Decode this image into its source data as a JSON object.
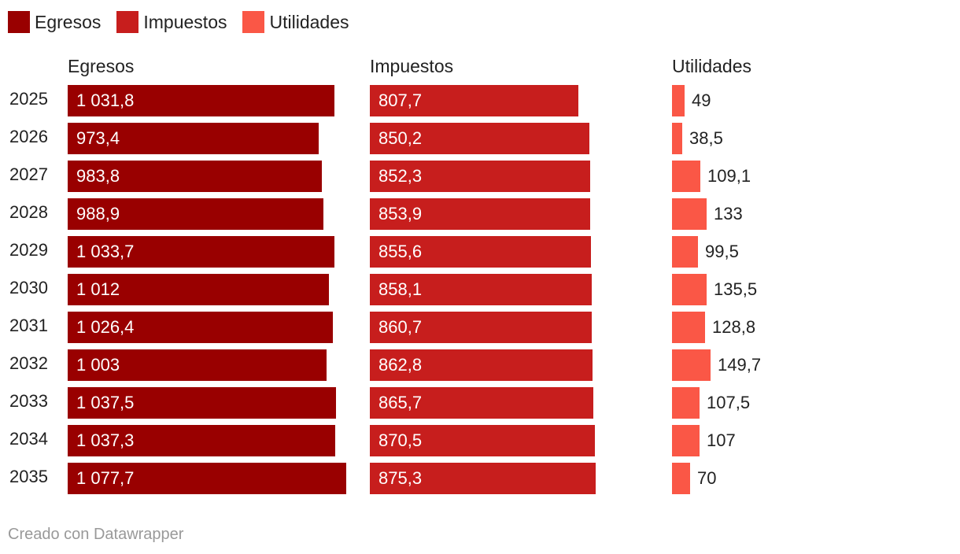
{
  "chart_data": {
    "type": "bar",
    "orientation": "horizontal",
    "layout": "small-multiples",
    "categories": [
      "2025",
      "2026",
      "2027",
      "2028",
      "2029",
      "2030",
      "2031",
      "2032",
      "2033",
      "2034",
      "2035"
    ],
    "series": [
      {
        "name": "Egresos",
        "color": "#990000",
        "values": [
          1031.8,
          973.4,
          983.8,
          988.9,
          1033.7,
          1012,
          1026.4,
          1003,
          1037.5,
          1037.3,
          1077.7
        ],
        "labels": [
          "1 031,8",
          "973,4",
          "983,8",
          "988,9",
          "1 033,7",
          "1 012",
          "1 026,4",
          "1 003",
          "1 037,5",
          "1 037,3",
          "1 077,7"
        ]
      },
      {
        "name": "Impuestos",
        "color": "#c71e1d",
        "values": [
          807.7,
          850.2,
          852.3,
          853.9,
          855.6,
          858.1,
          860.7,
          862.8,
          865.7,
          870.5,
          875.3
        ],
        "labels": [
          "807,7",
          "850,2",
          "852,3",
          "853,9",
          "855,6",
          "858,1",
          "860,7",
          "862,8",
          "865,7",
          "870,5",
          "875,3"
        ]
      },
      {
        "name": "Utilidades",
        "color": "#fa5746",
        "values": [
          49,
          38.5,
          109.1,
          133,
          99.5,
          135.5,
          128.8,
          149.7,
          107.5,
          107,
          70
        ],
        "labels": [
          "49",
          "38,5",
          "109,1",
          "133",
          "99,5",
          "135,5",
          "128,8",
          "149,7",
          "107,5",
          "107",
          "70"
        ]
      }
    ],
    "legend_position": "top-left",
    "grid": false
  },
  "footer": "Creado con Datawrapper"
}
